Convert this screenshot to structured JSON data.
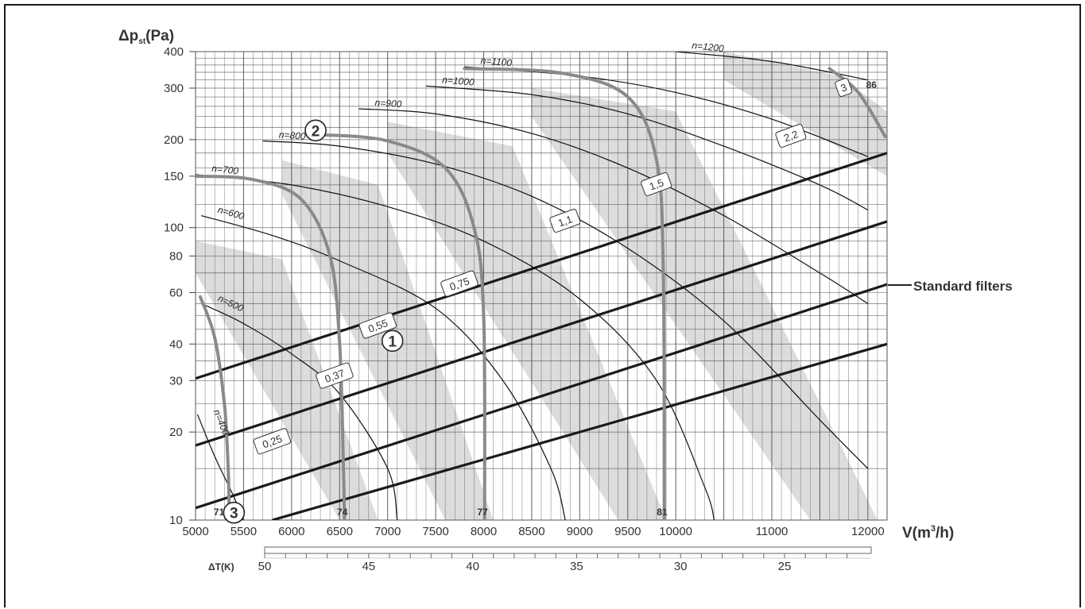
{
  "chart_data": {
    "type": "line",
    "ylabel": "Δp",
    "ylabel_sub": "st",
    "ylabel_unit": "(Pa)",
    "xlabel": "V(m",
    "xlabel_sup": "3",
    "xlabel_unit": "/h)",
    "x_scale": "linear",
    "y_scale": "log",
    "xlim": [
      5000,
      12200
    ],
    "ylim": [
      10,
      400
    ],
    "grid": true,
    "x_ticks": [
      "5000",
      "5500",
      "6000",
      "6500",
      "7000",
      "7500",
      "8000",
      "8500",
      "9000",
      "9500",
      "10000",
      "11000",
      "12000"
    ],
    "y_ticks": [
      "10",
      "20",
      "30",
      "40",
      "60",
      "80",
      "100",
      "150",
      "200",
      "300",
      "400"
    ],
    "delta_t_label": "ΔT(K)",
    "delta_t_ticks": [
      "50",
      "45",
      "40",
      "35",
      "30",
      "25"
    ],
    "delta_t_range": [
      50,
      22
    ],
    "fan_speed_curves": [
      {
        "label": "n=400",
        "points": [
          [
            5020,
            23
          ],
          [
            5200,
            16.5
          ],
          [
            5400,
            12
          ],
          [
            5500,
            10
          ]
        ]
      },
      {
        "label": "n=500",
        "points": [
          [
            5060,
            55
          ],
          [
            5500,
            47
          ],
          [
            6000,
            37
          ],
          [
            6500,
            27
          ],
          [
            7000,
            15
          ],
          [
            7100,
            10
          ]
        ]
      },
      {
        "label": "n=600",
        "points": [
          [
            5060,
            110
          ],
          [
            5800,
            94
          ],
          [
            6500,
            77
          ],
          [
            7500,
            53
          ],
          [
            8200,
            30
          ],
          [
            8700,
            15
          ],
          [
            8850,
            10
          ]
        ]
      },
      {
        "label": "n=700",
        "points": [
          [
            5000,
            152
          ],
          [
            6000,
            140
          ],
          [
            7000,
            118
          ],
          [
            8000,
            90
          ],
          [
            9000,
            57
          ],
          [
            9800,
            30
          ],
          [
            10300,
            13
          ],
          [
            10400,
            10
          ]
        ]
      },
      {
        "label": "n=800",
        "points": [
          [
            5700,
            198
          ],
          [
            6500,
            190
          ],
          [
            7500,
            165
          ],
          [
            8500,
            128
          ],
          [
            9500,
            85
          ],
          [
            10500,
            48
          ],
          [
            11500,
            22
          ],
          [
            12000,
            15
          ]
        ]
      },
      {
        "label": "n=900",
        "points": [
          [
            6700,
            255
          ],
          [
            7500,
            245
          ],
          [
            8500,
            210
          ],
          [
            9500,
            160
          ],
          [
            10500,
            110
          ],
          [
            11500,
            70
          ],
          [
            12000,
            55
          ]
        ]
      },
      {
        "label": "n=1000",
        "points": [
          [
            7400,
            305
          ],
          [
            8500,
            285
          ],
          [
            9500,
            245
          ],
          [
            10500,
            190
          ],
          [
            11500,
            140
          ],
          [
            12000,
            115
          ]
        ]
      },
      {
        "label": "n=1100",
        "points": [
          [
            7800,
            355
          ],
          [
            9000,
            330
          ],
          [
            10000,
            290
          ],
          [
            11000,
            235
          ],
          [
            12000,
            175
          ]
        ]
      },
      {
        "label": "n=1200",
        "points": [
          [
            10000,
            400
          ],
          [
            11000,
            370
          ],
          [
            12000,
            320
          ]
        ]
      }
    ],
    "efficiency_curves": [
      {
        "label": "71",
        "points": [
          [
            5050,
            58
          ],
          [
            5200,
            42
          ],
          [
            5300,
            25
          ],
          [
            5340,
            15
          ],
          [
            5350,
            10
          ]
        ]
      },
      {
        "label": "74",
        "points": [
          [
            5000,
            150
          ],
          [
            5600,
            146
          ],
          [
            6100,
            125
          ],
          [
            6400,
            80
          ],
          [
            6500,
            40
          ],
          [
            6540,
            15
          ],
          [
            6550,
            10
          ]
        ]
      },
      {
        "label": "77",
        "points": [
          [
            6300,
            208
          ],
          [
            7000,
            198
          ],
          [
            7600,
            160
          ],
          [
            7900,
            100
          ],
          [
            8000,
            50
          ],
          [
            8010,
            10
          ]
        ]
      },
      {
        "label": "81",
        "points": [
          [
            7800,
            350
          ],
          [
            8800,
            338
          ],
          [
            9500,
            280
          ],
          [
            9800,
            170
          ],
          [
            9870,
            70
          ],
          [
            9880,
            10
          ]
        ]
      },
      {
        "label": "86",
        "points": [
          [
            11600,
            350
          ],
          [
            11900,
            290
          ],
          [
            12180,
            205
          ]
        ]
      }
    ],
    "motor_power_labels": [
      "0,25",
      "0,37",
      "0,55",
      "0,75",
      "1,1",
      "1,5",
      "2,2",
      "3"
    ],
    "circled_markers": [
      "1",
      "2",
      "3"
    ],
    "filter_lines": [
      {
        "points": [
          [
            5000,
            30.5
          ],
          [
            12200,
            180
          ]
        ]
      },
      {
        "points": [
          [
            5000,
            18
          ],
          [
            12200,
            105
          ]
        ]
      },
      {
        "points": [
          [
            5000,
            11
          ],
          [
            12200,
            64
          ]
        ]
      },
      {
        "points": [
          [
            5800,
            10
          ],
          [
            12200,
            40
          ]
        ]
      }
    ],
    "filter_annotation": "Standard filters",
    "colors": {
      "efficiency_curve": "#8a8a8a",
      "shade_band": "#dcdcdc",
      "grid": "#444444",
      "filter_line": "#1a1a1a"
    }
  }
}
